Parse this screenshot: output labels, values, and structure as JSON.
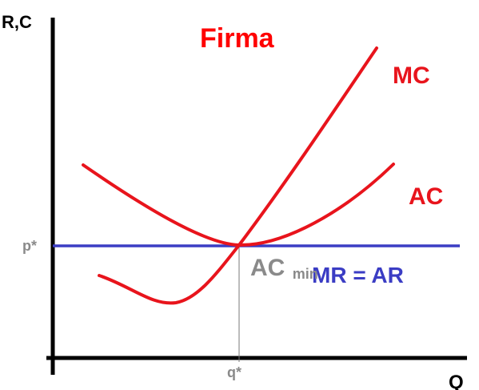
{
  "title": "Firma",
  "axes": {
    "y_label": "R,C",
    "x_label": "Q"
  },
  "curves": {
    "mc_label": "MC",
    "ac_label": "AC",
    "mr_label": "MR = AR"
  },
  "markers": {
    "p_label": "p*",
    "q_label": "q*",
    "acmin_main": "AC",
    "acmin_sub": "min"
  },
  "colors": {
    "curve": "#e8141c",
    "revenue": "#3b3dc4",
    "axis": "#000000",
    "marker": "#8a8a8a",
    "title": "#ff0000"
  }
}
